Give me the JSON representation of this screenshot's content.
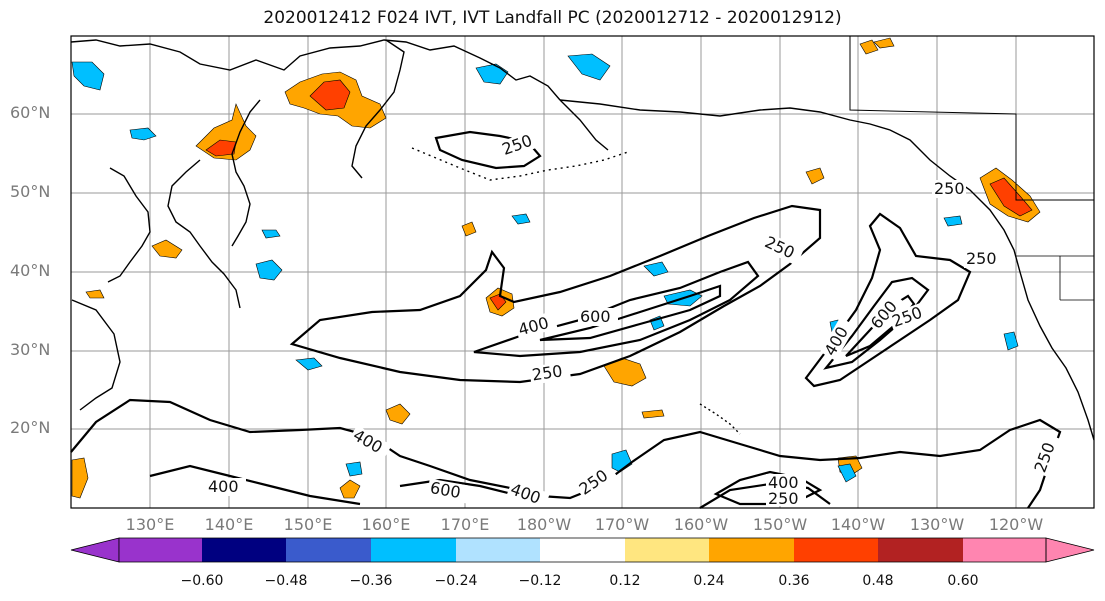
{
  "title": "2020012412 F024 IVT, IVT Landfall PC (2020012712 - 2020012912)",
  "map": {
    "lat_labels": [
      "60°N",
      "50°N",
      "40°N",
      "30°N",
      "20°N"
    ],
    "lon_labels": [
      "130°E",
      "140°E",
      "150°E",
      "160°E",
      "170°E",
      "180°W",
      "170°W",
      "160°W",
      "150°W",
      "140°W",
      "130°W",
      "120°W"
    ],
    "contour_labels": [
      "250",
      "250",
      "250",
      "250",
      "400",
      "600",
      "250",
      "400",
      "600",
      "250",
      "400",
      "600",
      "400",
      "250",
      "400",
      "250",
      "250",
      "400"
    ],
    "colors": {
      "ocean": "#ffffff",
      "coast": "#000000",
      "grid": "#9a9a9a"
    }
  },
  "colorbar": {
    "ticks": [
      "−0.60",
      "−0.48",
      "−0.36",
      "−0.24",
      "−0.12",
      "0.12",
      "0.24",
      "0.36",
      "0.48",
      "0.60"
    ],
    "bins": [
      {
        "color": "#9933cc"
      },
      {
        "color": "#000080"
      },
      {
        "color": "#3a5bcc"
      },
      {
        "color": "#00bfff"
      },
      {
        "color": "#b0e2ff"
      },
      {
        "color": "#ffffff"
      },
      {
        "color": "#ffe680"
      },
      {
        "color": "#ffa500"
      },
      {
        "color": "#ff4000"
      },
      {
        "color": "#b22222"
      },
      {
        "color": "#ff85b0"
      }
    ]
  }
}
